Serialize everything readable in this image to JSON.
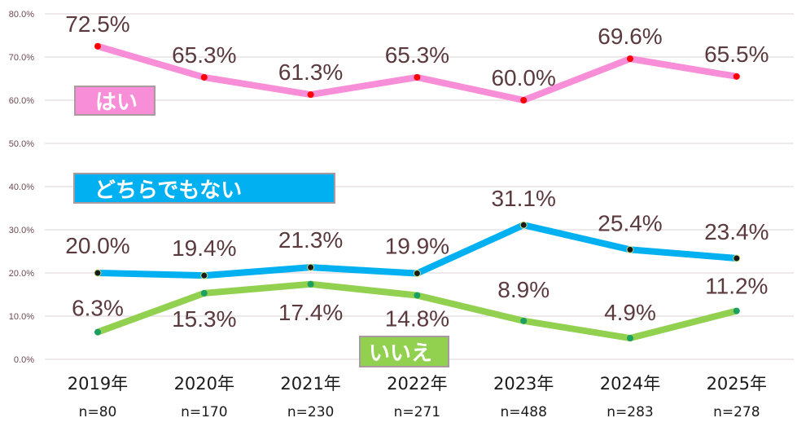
{
  "chart_data": {
    "type": "line",
    "categories": [
      "2019年",
      "2020年",
      "2021年",
      "2022年",
      "2023年",
      "2024年",
      "2025年"
    ],
    "sample_sizes": [
      "n=80",
      "n=170",
      "n=230",
      "n=271",
      "n=488",
      "n=283",
      "n=278"
    ],
    "ylim": [
      0,
      80
    ],
    "yticks": [
      "0.0%",
      "10.0%",
      "20.0%",
      "30.0%",
      "40.0%",
      "50.0%",
      "60.0%",
      "70.0%",
      "80.0%"
    ],
    "grid": true,
    "series": [
      {
        "name": "はい",
        "color": "#f98ed8",
        "marker": "#ff0000",
        "values": [
          72.5,
          65.3,
          61.3,
          65.3,
          60.0,
          69.6,
          65.5
        ],
        "labels": [
          "72.5%",
          "65.3%",
          "61.3%",
          "65.3%",
          "60.0%",
          "69.6%",
          "65.5%"
        ]
      },
      {
        "name": "どちらでもない",
        "color": "#00b0f0",
        "marker": "#1a1a1a",
        "values": [
          20.0,
          19.4,
          21.3,
          19.9,
          31.1,
          25.4,
          23.4
        ],
        "labels": [
          "20.0%",
          "19.4%",
          "21.3%",
          "19.9%",
          "31.1%",
          "25.4%",
          "23.4%"
        ]
      },
      {
        "name": "いいえ",
        "color": "#92d050",
        "marker": "#1aa060",
        "values": [
          6.3,
          15.3,
          17.4,
          14.8,
          8.9,
          4.9,
          11.2
        ],
        "labels": [
          "6.3%",
          "15.3%",
          "17.4%",
          "14.8%",
          "8.9%",
          "4.9%",
          "11.2%"
        ]
      }
    ]
  }
}
